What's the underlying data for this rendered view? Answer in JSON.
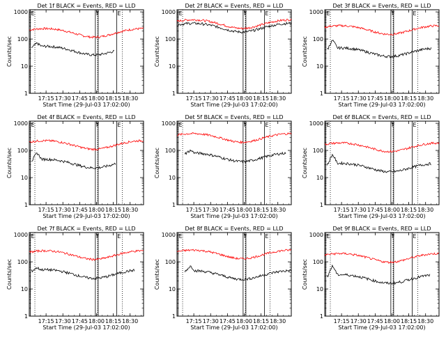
{
  "chart_data": {
    "type": "line",
    "x_tick_labels": [
      "17:15",
      "17:30",
      "17:45",
      "18:00",
      "18:15",
      "18:30"
    ],
    "x_ticks_min": [
      13,
      28,
      43,
      58,
      73,
      88
    ],
    "xlim_min": [
      -2,
      100
    ],
    "y_tick_labels": [
      "1000",
      "100",
      "10",
      "1"
    ],
    "y_tick_values": [
      1000,
      100,
      10,
      1
    ],
    "ylim": [
      1,
      1200
    ],
    "y_scale": "log",
    "ylabel": "Counts/sec",
    "xlabel": "Start Time (29-Jul-03 17:02:00)",
    "series_colors": {
      "events": "#000000",
      "lld": "#ff0000"
    },
    "markers": [
      {
        "label": "E",
        "t_min": -1
      },
      {
        "label": "F",
        "t_min": 57
      },
      {
        "label": "E",
        "t_min": 76
      }
    ],
    "dotted_lines_min": [
      3,
      59,
      81
    ],
    "panels": [
      {
        "title": "Det 1f BLACK = Events, RED = LLD",
        "black_level": 40,
        "red_level": 180,
        "black_start_min": 0,
        "black_end_min": 74,
        "black_peak_min": 5,
        "black_peak": 70
      },
      {
        "title": "Det 2f BLACK = Events, RED = LLD",
        "black_level": 280,
        "red_level": 380,
        "black_start_min": -2,
        "black_end_min": 100,
        "black_peak_min": null,
        "black_peak": null
      },
      {
        "title": "Det 3f BLACK = Events, RED = LLD",
        "black_level": 35,
        "red_level": 230,
        "black_start_min": 0,
        "black_end_min": 93,
        "black_peak_min": 5,
        "black_peak": 90
      },
      {
        "title": "Det 4f BLACK = Events, RED = LLD",
        "black_level": 35,
        "red_level": 170,
        "black_start_min": 0,
        "black_end_min": 75,
        "black_peak_min": 5,
        "black_peak": 80
      },
      {
        "title": "Det 5f BLACK = Events, RED = LLD",
        "black_level": 60,
        "red_level": 310,
        "black_start_min": 5,
        "black_end_min": 95,
        "black_peak_min": 10,
        "black_peak": 100
      },
      {
        "title": "Det 6f BLACK = Events, RED = LLD",
        "black_level": 25,
        "red_level": 140,
        "black_start_min": 0,
        "black_end_min": 93,
        "black_peak_min": 5,
        "black_peak": 70
      },
      {
        "title": "Det 7f BLACK = Events, RED = LLD",
        "black_level": 38,
        "red_level": 190,
        "black_start_min": 0,
        "black_end_min": 92,
        "black_peak_min": 5,
        "black_peak": 60
      },
      {
        "title": "Det 8f BLACK = Events, RED = LLD",
        "black_level": 35,
        "red_level": 200,
        "black_start_min": 5,
        "black_end_min": 100,
        "black_peak_min": 10,
        "black_peak": 70
      },
      {
        "title": "Det 9f BLACK = Events, RED = LLD",
        "black_level": 25,
        "red_level": 150,
        "black_start_min": 0,
        "black_end_min": 92,
        "black_peak_min": 5,
        "black_peak": 70
      }
    ]
  }
}
